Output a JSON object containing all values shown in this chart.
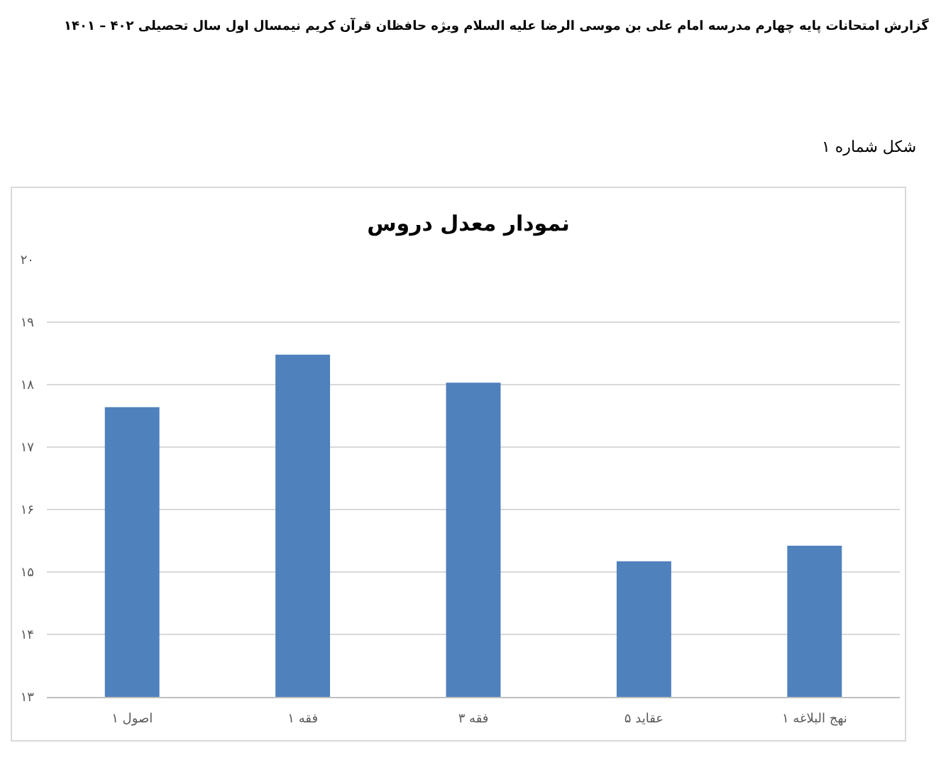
{
  "chart_data": {
    "type": "bar",
    "title": "نمودار معدل دروس",
    "annotations": [
      "گزارش امتحانات پایه چهارم مدرسه امام علی بن موسی الرضا علیه السلام ویژه حافظان قرآن کریم نیمسال اول سال تحصیلی ۴۰۲ – ۱۴۰۱",
      "شکل شماره ۱"
    ],
    "categories": [
      "اصول ۱",
      "فقه ۱",
      "فقه ۳",
      "عقاید ۵",
      "نهج البلاغه ۱"
    ],
    "values": [
      17.64,
      18.48,
      18.03,
      15.17,
      15.42
    ],
    "color": "#4f81bd",
    "ylim": [
      13,
      20
    ],
    "yticks": [
      {
        "value": 13,
        "label": "۱۳"
      },
      {
        "value": 14,
        "label": "۱۴"
      },
      {
        "value": 15,
        "label": "۱۵"
      },
      {
        "value": 16,
        "label": "۱۶"
      },
      {
        "value": 17,
        "label": "۱۷"
      },
      {
        "value": 18,
        "label": "۱۸"
      },
      {
        "value": 19,
        "label": "۱۹"
      },
      {
        "value": 20,
        "label": "۲۰"
      }
    ],
    "grid": "y"
  }
}
